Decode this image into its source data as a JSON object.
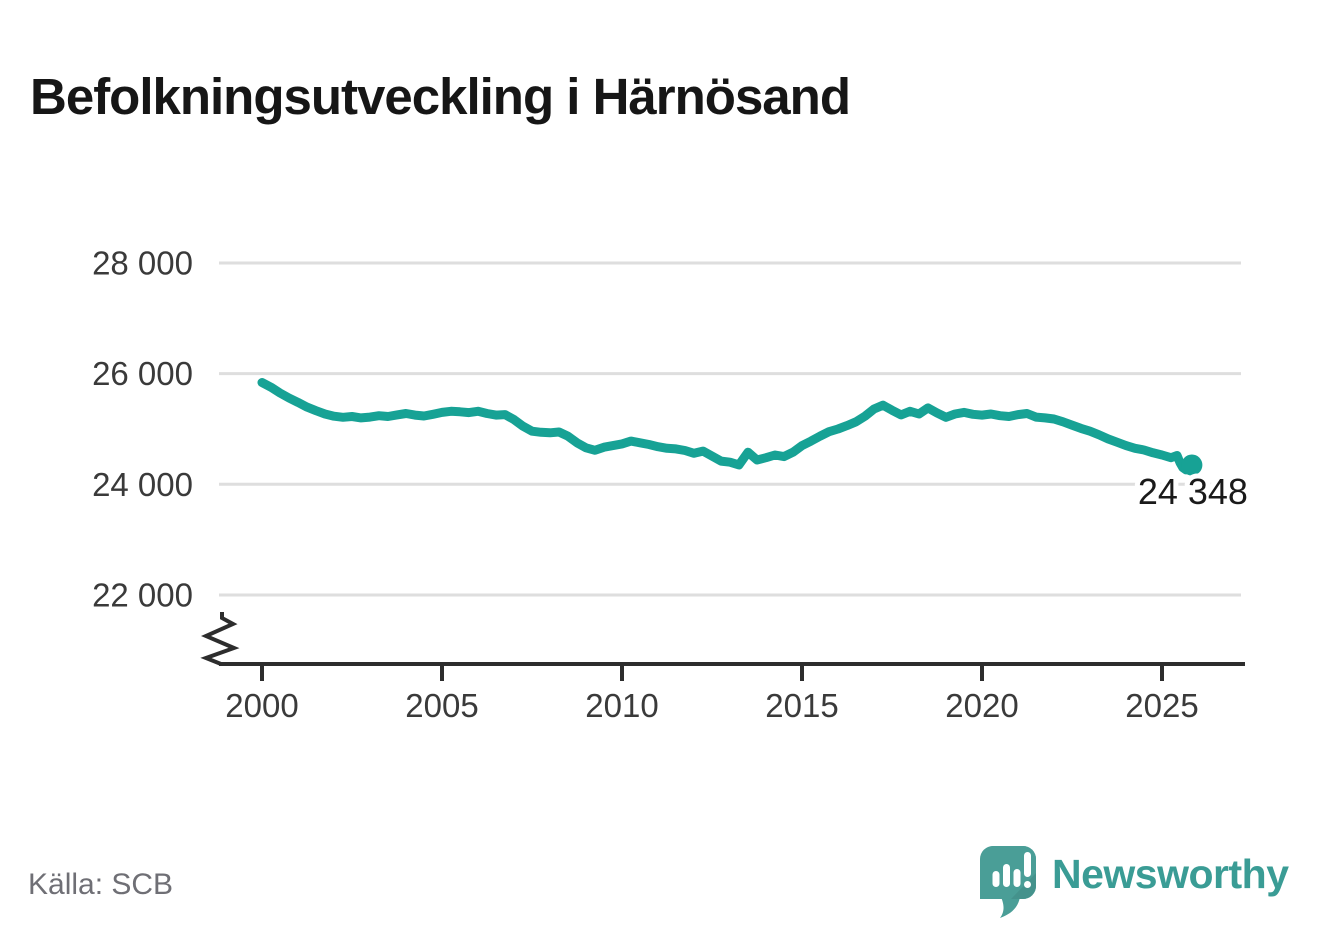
{
  "title": "Befolkningsutveckling i Härnösand",
  "source": "Källa: SCB",
  "branding": {
    "wordmark": "Newsworthy",
    "logo_icon": "newsworthy-speech-bubble-bar-chart-icon"
  },
  "colors": {
    "line": "#17a295",
    "end_dot": "#17a295",
    "grid": "#dedede",
    "axis": "#2d2d2d",
    "tick_label": "#3a3a3a",
    "end_label": "#1a1a1a",
    "title_text": "#161616",
    "source_text": "#6f6f75",
    "logo_fill": "#4a9e97",
    "wordmark_text": "#3a9c95",
    "background": "#ffffff"
  },
  "chart_data": {
    "type": "line",
    "title": "Befolkningsutveckling i Härnösand",
    "xlabel": "",
    "ylabel": "",
    "grid": "horizontal",
    "axis_break": true,
    "legend": "none",
    "x_range": [
      2000,
      2026
    ],
    "y_ticks": {
      "values": [
        28000,
        26000,
        24000,
        22000
      ],
      "labels": [
        "28 000",
        "26 000",
        "24 000",
        "22 000"
      ]
    },
    "x_ticks": {
      "values": [
        2000,
        2005,
        2010,
        2015,
        2020,
        2025
      ],
      "labels": [
        "2000",
        "2005",
        "2010",
        "2015",
        "2020",
        "2025"
      ]
    },
    "end_label": "24 348",
    "end_value": 24348,
    "series": [
      {
        "name": "Befolkning",
        "points": [
          [
            2000.0,
            25840
          ],
          [
            2000.25,
            25755
          ],
          [
            2000.5,
            25650
          ],
          [
            2000.75,
            25560
          ],
          [
            2001.0,
            25480
          ],
          [
            2001.25,
            25395
          ],
          [
            2001.5,
            25330
          ],
          [
            2001.75,
            25270
          ],
          [
            2002.0,
            25230
          ],
          [
            2002.25,
            25210
          ],
          [
            2002.5,
            25225
          ],
          [
            2002.75,
            25200
          ],
          [
            2003.0,
            25215
          ],
          [
            2003.25,
            25240
          ],
          [
            2003.5,
            25225
          ],
          [
            2003.75,
            25255
          ],
          [
            2004.0,
            25280
          ],
          [
            2004.25,
            25250
          ],
          [
            2004.5,
            25235
          ],
          [
            2004.75,
            25265
          ],
          [
            2005.0,
            25300
          ],
          [
            2005.25,
            25320
          ],
          [
            2005.5,
            25310
          ],
          [
            2005.75,
            25295
          ],
          [
            2006.0,
            25320
          ],
          [
            2006.25,
            25280
          ],
          [
            2006.5,
            25250
          ],
          [
            2006.75,
            25260
          ],
          [
            2007.0,
            25170
          ],
          [
            2007.25,
            25050
          ],
          [
            2007.5,
            24960
          ],
          [
            2007.75,
            24940
          ],
          [
            2008.0,
            24930
          ],
          [
            2008.25,
            24945
          ],
          [
            2008.5,
            24870
          ],
          [
            2008.75,
            24750
          ],
          [
            2009.0,
            24660
          ],
          [
            2009.25,
            24615
          ],
          [
            2009.5,
            24670
          ],
          [
            2009.75,
            24700
          ],
          [
            2010.0,
            24730
          ],
          [
            2010.25,
            24780
          ],
          [
            2010.5,
            24750
          ],
          [
            2010.75,
            24720
          ],
          [
            2011.0,
            24680
          ],
          [
            2011.25,
            24650
          ],
          [
            2011.5,
            24640
          ],
          [
            2011.75,
            24610
          ],
          [
            2012.0,
            24560
          ],
          [
            2012.25,
            24600
          ],
          [
            2012.5,
            24510
          ],
          [
            2012.75,
            24420
          ],
          [
            2013.0,
            24400
          ],
          [
            2013.25,
            24350
          ],
          [
            2013.5,
            24580
          ],
          [
            2013.75,
            24440
          ],
          [
            2014.0,
            24480
          ],
          [
            2014.25,
            24530
          ],
          [
            2014.5,
            24500
          ],
          [
            2014.75,
            24580
          ],
          [
            2015.0,
            24700
          ],
          [
            2015.25,
            24780
          ],
          [
            2015.5,
            24870
          ],
          [
            2015.75,
            24950
          ],
          [
            2016.0,
            25000
          ],
          [
            2016.25,
            25060
          ],
          [
            2016.5,
            25130
          ],
          [
            2016.75,
            25230
          ],
          [
            2017.0,
            25360
          ],
          [
            2017.25,
            25430
          ],
          [
            2017.5,
            25340
          ],
          [
            2017.75,
            25255
          ],
          [
            2018.0,
            25320
          ],
          [
            2018.25,
            25270
          ],
          [
            2018.5,
            25380
          ],
          [
            2018.75,
            25290
          ],
          [
            2019.0,
            25210
          ],
          [
            2019.25,
            25270
          ],
          [
            2019.5,
            25300
          ],
          [
            2019.75,
            25265
          ],
          [
            2020.0,
            25250
          ],
          [
            2020.25,
            25270
          ],
          [
            2020.5,
            25240
          ],
          [
            2020.75,
            25225
          ],
          [
            2021.0,
            25260
          ],
          [
            2021.25,
            25280
          ],
          [
            2021.5,
            25215
          ],
          [
            2021.75,
            25200
          ],
          [
            2022.0,
            25180
          ],
          [
            2022.25,
            25130
          ],
          [
            2022.5,
            25070
          ],
          [
            2022.75,
            25010
          ],
          [
            2023.0,
            24960
          ],
          [
            2023.25,
            24895
          ],
          [
            2023.5,
            24820
          ],
          [
            2023.75,
            24760
          ],
          [
            2024.0,
            24700
          ],
          [
            2024.25,
            24650
          ],
          [
            2024.5,
            24620
          ],
          [
            2024.75,
            24570
          ],
          [
            2025.0,
            24530
          ],
          [
            2025.25,
            24480
          ],
          [
            2025.42,
            24520
          ],
          [
            2025.5,
            24390
          ],
          [
            2025.58,
            24300
          ],
          [
            2025.67,
            24260
          ],
          [
            2025.75,
            24310
          ],
          [
            2025.83,
            24348
          ]
        ]
      }
    ]
  }
}
